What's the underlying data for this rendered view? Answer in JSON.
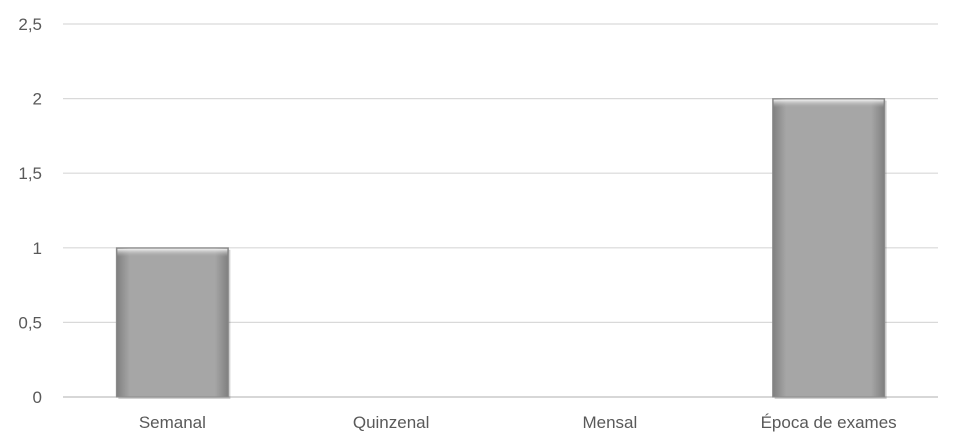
{
  "chart_data": {
    "type": "bar",
    "categories": [
      "Semanal",
      "Quinzenal",
      "Mensal",
      "Época de exames"
    ],
    "values": [
      1,
      0,
      0,
      2
    ],
    "ylim": [
      0,
      2.5
    ],
    "y_ticks": [
      0,
      0.5,
      1,
      1.5,
      2,
      2.5
    ],
    "y_tick_labels": [
      "0",
      "0,5",
      "1",
      "1,5",
      "2",
      "2,5"
    ],
    "title": "",
    "xlabel": "",
    "ylabel": "",
    "grid": true,
    "legend": "none",
    "bar_color": "#a6a6a6",
    "grid_color": "#d9d9d9",
    "text_color": "#595959"
  }
}
